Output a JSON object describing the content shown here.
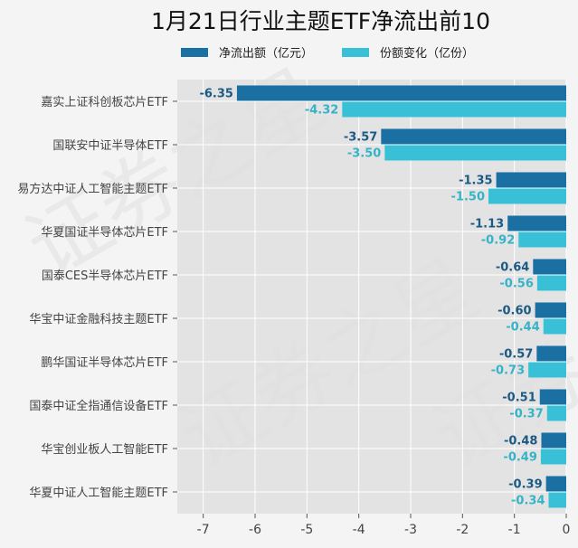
{
  "watermark": "证券之星",
  "chart_data": {
    "type": "bar",
    "orientation": "horizontal",
    "title": "1月21日行业主题ETF净流出前10",
    "categories": [
      "嘉实上证科创板芯片ETF",
      "国联安中证半导体ETF",
      "易方达中证人工智能主题ETF",
      "华夏国证半导体芯片ETF",
      "国泰CES半导体芯片ETF",
      "华宝中证金融科技主题ETF",
      "鹏华国证半导体芯片ETF",
      "国泰中证全指通信设备ETF",
      "华宝创业板人工智能ETF",
      "华夏中证人工智能主题ETF"
    ],
    "series": [
      {
        "name": "净流出额（亿元）",
        "color": "#1a6fa3",
        "label_color": "#1a5a85",
        "values": [
          -6.35,
          -3.57,
          -1.35,
          -1.13,
          -0.64,
          -0.6,
          -0.57,
          -0.51,
          -0.48,
          -0.39
        ],
        "labels": [
          "-6.35",
          "-3.57",
          "-1.35",
          "-1.13",
          "-0.64",
          "-0.60",
          "-0.57",
          "-0.51",
          "-0.48",
          "-0.39"
        ]
      },
      {
        "name": "份额变化（亿份）",
        "color": "#38c0d6",
        "label_color": "#35b3c9",
        "values": [
          -4.32,
          -3.5,
          -1.5,
          -0.92,
          -0.56,
          -0.44,
          -0.73,
          -0.37,
          -0.49,
          -0.34
        ],
        "labels": [
          "-4.32",
          "-3.50",
          "-1.50",
          "-0.92",
          "-0.56",
          "-0.44",
          "-0.73",
          "-0.37",
          "-0.49",
          "-0.34"
        ]
      }
    ],
    "xlim": [
      -7.5,
      0
    ],
    "xticks": [
      "-7",
      "-6",
      "-5",
      "-4",
      "-3",
      "-2",
      "-1",
      "0"
    ],
    "xtick_values": [
      -7,
      -6,
      -5,
      -4,
      -3,
      -2,
      -1,
      0
    ],
    "xlabel": "",
    "ylabel": "",
    "grid": true,
    "legend_position": "top-center"
  }
}
